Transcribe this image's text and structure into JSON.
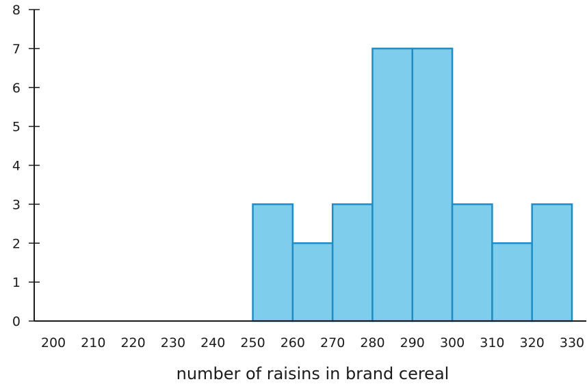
{
  "chart_data": {
    "type": "bar",
    "subtype": "histogram",
    "title": "",
    "xlabel": "number of raisins in brand cereal",
    "ylabel": "",
    "bins": [
      {
        "start": 250,
        "end": 260,
        "count": 3
      },
      {
        "start": 260,
        "end": 270,
        "count": 2
      },
      {
        "start": 270,
        "end": 280,
        "count": 3
      },
      {
        "start": 280,
        "end": 290,
        "count": 7
      },
      {
        "start": 290,
        "end": 300,
        "count": 7
      },
      {
        "start": 300,
        "end": 310,
        "count": 3
      },
      {
        "start": 310,
        "end": 320,
        "count": 2
      },
      {
        "start": 320,
        "end": 330,
        "count": 3
      }
    ],
    "xlim": [
      200,
      330
    ],
    "ylim": [
      0,
      8
    ],
    "xticks": [
      "200",
      "210",
      "220",
      "230",
      "240",
      "250",
      "260",
      "270",
      "280",
      "290",
      "300",
      "310",
      "320",
      "330"
    ],
    "yticks": [
      "0",
      "1",
      "2",
      "3",
      "4",
      "5",
      "6",
      "7",
      "8"
    ],
    "grid": false,
    "colors": {
      "bar_fill": "#7fcdec",
      "bar_stroke": "#1f8dc4",
      "axis": "#1a1a1a"
    }
  }
}
